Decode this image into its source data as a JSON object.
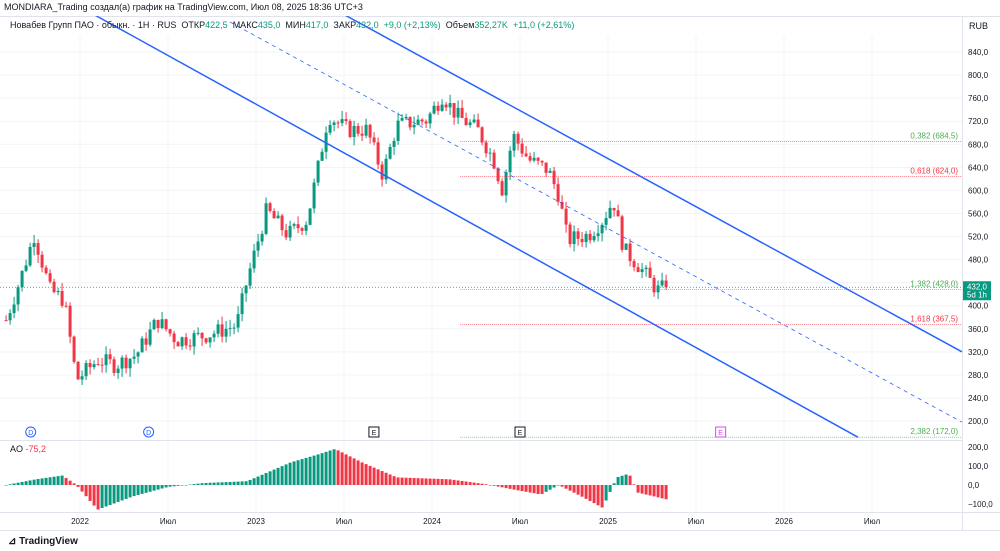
{
  "title": "MONDIARA_Trading создал(а) график на TradingView.com, Июл 08, 2025 18:36 UTC+3",
  "legend": {
    "symbol": "Новабев Групп ПАО · обыкн. · 1Н · RUS",
    "open_label": "ОТКР",
    "open": "422,5",
    "high_label": "МАКС",
    "high": "435,0",
    "low_label": "МИН",
    "low": "417,0",
    "close_label": "ЗАКР",
    "close": "432,0",
    "change": "+9,0 (+2,13%)",
    "volume_label": "Объем",
    "volume": "352,27K",
    "volume_change": "+11,0 (+2,61%)"
  },
  "currency": "RUB",
  "ao": {
    "label": "AO",
    "value": "-75,2"
  },
  "footer": "TradingView",
  "colors": {
    "up": "#089981",
    "down": "#f23645",
    "line": "#2962ff",
    "fib_green": "#4caf50",
    "fib_red": "#f23645"
  },
  "chart_data": {
    "type": "candlestick",
    "price_ticks": [
      "840,0",
      "800,0",
      "760,0",
      "720,0",
      "680,0",
      "640,0",
      "600,0",
      "560,0",
      "520,0",
      "480,0",
      "440,0",
      "400,0",
      "360,0",
      "320,0",
      "280,0",
      "240,0",
      "200,0"
    ],
    "price_tick_values": [
      840,
      800,
      760,
      720,
      680,
      640,
      600,
      560,
      520,
      480,
      440,
      400,
      360,
      320,
      280,
      240,
      200
    ],
    "ylim": [
      200,
      840
    ],
    "time_ticks": [
      {
        "t": 2022,
        "label": "2022"
      },
      {
        "t": 2022.5,
        "label": "Июл"
      },
      {
        "t": 2023,
        "label": "2023"
      },
      {
        "t": 2023.5,
        "label": "Июл"
      },
      {
        "t": 2024,
        "label": "2024"
      },
      {
        "t": 2024.5,
        "label": "Июл"
      },
      {
        "t": 2025,
        "label": "2025"
      },
      {
        "t": 2025.5,
        "label": "Июл"
      },
      {
        "t": 2026,
        "label": "2026"
      },
      {
        "t": 2026.5,
        "label": "Июл"
      }
    ],
    "price_keypoints": [
      [
        2021.58,
        375
      ],
      [
        2021.66,
        445
      ],
      [
        2021.74,
        523
      ],
      [
        2021.83,
        427
      ],
      [
        2021.91,
        410
      ],
      [
        2021.98,
        271
      ],
      [
        2022.1,
        306
      ],
      [
        2022.2,
        297
      ],
      [
        2022.32,
        315
      ],
      [
        2022.44,
        375
      ],
      [
        2022.55,
        340
      ],
      [
        2022.72,
        349
      ],
      [
        2022.89,
        366
      ],
      [
        2022.95,
        445
      ],
      [
        2023.06,
        566
      ],
      [
        2023.18,
        523
      ],
      [
        2023.29,
        549
      ],
      [
        2023.35,
        635
      ],
      [
        2023.41,
        730
      ],
      [
        2023.52,
        705
      ],
      [
        2023.63,
        705
      ],
      [
        2023.72,
        627
      ],
      [
        2023.8,
        713
      ],
      [
        2023.97,
        722
      ],
      [
        2024.06,
        765
      ],
      [
        2024.14,
        730
      ],
      [
        2024.26,
        705
      ],
      [
        2024.35,
        653
      ],
      [
        2024.4,
        601
      ],
      [
        2024.46,
        696
      ],
      [
        2024.55,
        653
      ],
      [
        2024.66,
        635
      ],
      [
        2024.72,
        592
      ],
      [
        2024.77,
        514
      ],
      [
        2024.89,
        523
      ],
      [
        2024.97,
        549
      ],
      [
        2025.03,
        583
      ],
      [
        2025.09,
        497
      ],
      [
        2025.17,
        471
      ],
      [
        2025.28,
        427
      ],
      [
        2025.33,
        432
      ]
    ],
    "ao_keypoints": [
      [
        2021.58,
        0
      ],
      [
        2021.75,
        30
      ],
      [
        2021.9,
        50
      ],
      [
        2021.98,
        0
      ],
      [
        2022.1,
        -130
      ],
      [
        2022.3,
        -60
      ],
      [
        2022.5,
        -10
      ],
      [
        2022.7,
        10
      ],
      [
        2022.95,
        20
      ],
      [
        2023.2,
        120
      ],
      [
        2023.35,
        160
      ],
      [
        2023.45,
        190
      ],
      [
        2023.6,
        120
      ],
      [
        2023.8,
        40
      ],
      [
        2024.1,
        30
      ],
      [
        2024.3,
        5
      ],
      [
        2024.5,
        -30
      ],
      [
        2024.62,
        -50
      ],
      [
        2024.72,
        0
      ],
      [
        2024.85,
        -60
      ],
      [
        2024.97,
        -120
      ],
      [
        2025.05,
        40
      ],
      [
        2025.12,
        60
      ],
      [
        2025.17,
        -40
      ],
      [
        2025.33,
        -75
      ]
    ],
    "ao_ticks": [
      {
        "v": 200,
        "label": "200,0"
      },
      {
        "v": 100,
        "label": "100,0"
      },
      {
        "v": 0,
        "label": "0,0"
      },
      {
        "v": -100,
        "label": "−100,0"
      }
    ],
    "last_price": {
      "value": 432,
      "label": "432,0",
      "countdown": "5d 1h"
    },
    "trend_lines": [
      {
        "name": "channel-upper",
        "from": [
          2023.506,
          904
        ],
        "to": [
          2027.011,
          320
        ],
        "dashed": false
      },
      {
        "name": "channel-lower",
        "from": [
          2022.085,
          904
        ],
        "to": [
          2026.42,
          172
        ],
        "dashed": false
      },
      {
        "name": "channel-middle",
        "from": [
          2022.852,
          892
        ],
        "to": [
          2027.011,
          198
        ],
        "dashed": true
      }
    ],
    "fib_levels": [
      {
        "label": "0,382 (684,5)",
        "value": 684.5,
        "color": "green"
      },
      {
        "label": "0,618 (624,0)",
        "value": 624,
        "color": "red"
      },
      {
        "label": "1,382 (428,0)",
        "value": 428,
        "color": "green"
      },
      {
        "label": "1,618 (367,5)",
        "value": 367.5,
        "color": "red"
      },
      {
        "label": "2,382 (172,0)",
        "value": 172,
        "color": "green"
      }
    ],
    "fib_start": 2024.16,
    "events": [
      {
        "t": 2021.72,
        "label": "D",
        "kind": "dividend"
      },
      {
        "t": 2022.39,
        "label": "D",
        "kind": "dividend"
      },
      {
        "t": 2023.67,
        "label": "E",
        "kind": "earnings"
      },
      {
        "t": 2024.5,
        "label": "E",
        "kind": "earnings"
      },
      {
        "t": 2025.64,
        "label": "E",
        "kind": "earnings-future"
      }
    ]
  }
}
